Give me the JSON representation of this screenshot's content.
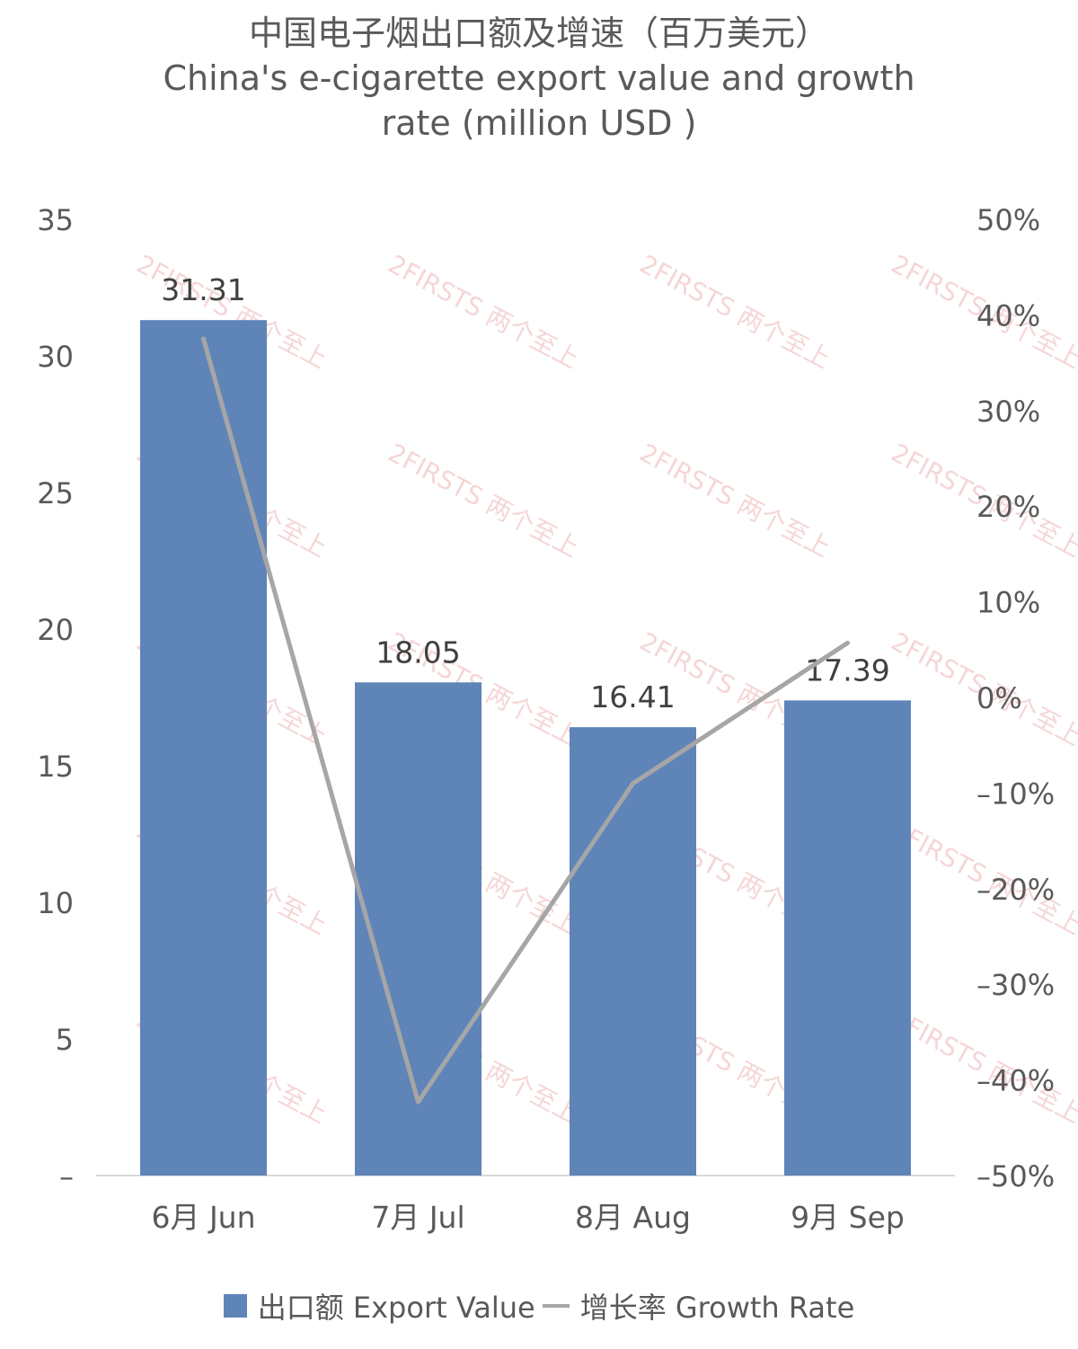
{
  "chart_data": {
    "type": "bar",
    "title_lines": [
      "中国电子烟出口额及增速（百万美元）",
      "China's e-cigarette export value and growth",
      "rate (million USD )"
    ],
    "categories": [
      "6月 Jun",
      "7月 Jul",
      "8月 Aug",
      "9月 Sep"
    ],
    "series": [
      {
        "name": "出口额 Export Value",
        "type": "bar",
        "axis": "left",
        "color": "#5f84b8",
        "values": [
          31.31,
          18.05,
          16.41,
          17.39
        ],
        "labels": [
          "31.31",
          "18.05",
          "16.41",
          "17.39"
        ]
      },
      {
        "name": "增长率 Growth Rate",
        "type": "line",
        "axis": "right",
        "color": "#a6a6a6",
        "values": [
          37.5,
          -42.3,
          -9.0,
          5.7
        ]
      }
    ],
    "left_axis": {
      "ylim": [
        0,
        35
      ],
      "ticks": [
        0,
        5,
        10,
        15,
        20,
        25,
        30,
        35
      ],
      "tick_labels": [
        "–",
        "5",
        "10",
        "15",
        "20",
        "25",
        "30",
        "35"
      ]
    },
    "right_axis": {
      "ylim": [
        -50,
        50
      ],
      "ticks": [
        -50,
        -40,
        -30,
        -20,
        -10,
        0,
        10,
        20,
        30,
        40,
        50
      ],
      "tick_labels": [
        "–50%",
        "–40%",
        "–30%",
        "–20%",
        "–10%",
        "0%",
        "10%",
        "20%",
        "30%",
        "40%",
        "50%"
      ]
    },
    "legend_position": "bottom",
    "grid": false,
    "watermark": "2FIRSTS 两个至上"
  }
}
